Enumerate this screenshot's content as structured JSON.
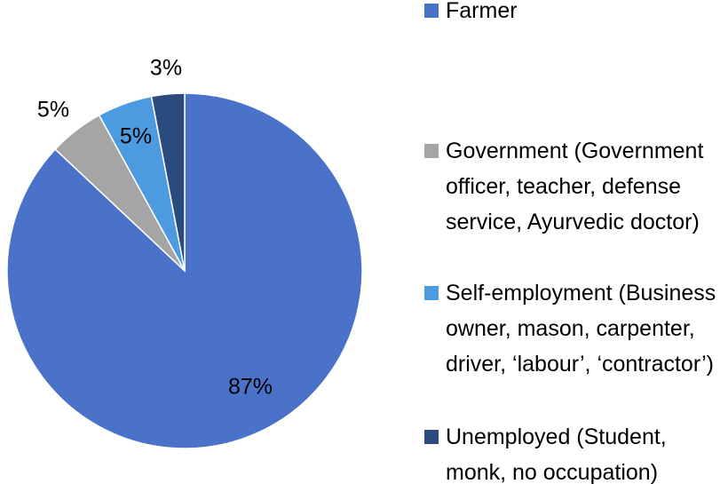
{
  "chart_data": {
    "type": "pie",
    "categories": [
      "Farmer",
      "Government (Government officer, teacher, defense service, Ayurvedic doctor)",
      "Self-employment (Business owner, mason, carpenter, driver, ‘labour’, ‘contractor’)",
      "Unemployed (Student, monk, no occupation)"
    ],
    "values": [
      87,
      5,
      5,
      3
    ],
    "value_labels": [
      "87%",
      "5%",
      "5%",
      "3%"
    ],
    "colors": [
      "#4a72c8",
      "#a5a5a5",
      "#4c9ae0",
      "#2b4a7e"
    ],
    "legend": "right"
  }
}
